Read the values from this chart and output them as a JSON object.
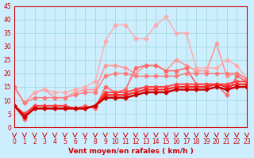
{
  "xlabel": "Vent moyen/en rafales ( km/h )",
  "ylabel": "",
  "xlim": [
    0,
    23
  ],
  "ylim": [
    0,
    45
  ],
  "yticks": [
    0,
    5,
    10,
    15,
    20,
    25,
    30,
    35,
    40,
    45
  ],
  "xticks": [
    0,
    1,
    2,
    3,
    4,
    5,
    6,
    7,
    8,
    9,
    10,
    11,
    12,
    13,
    14,
    15,
    16,
    17,
    18,
    19,
    20,
    21,
    22,
    23
  ],
  "bg_color": "#cceeff",
  "grid_color": "#aadddd",
  "series": [
    {
      "color": "#ff9999",
      "lw": 1.2,
      "marker": "D",
      "ms": 2.5,
      "data": [
        [
          0,
          15
        ],
        [
          1,
          9
        ],
        [
          2,
          13
        ],
        [
          3,
          14
        ],
        [
          4,
          11
        ],
        [
          5,
          11
        ],
        [
          6,
          13
        ],
        [
          7,
          14
        ],
        [
          8,
          14
        ],
        [
          9,
          23
        ],
        [
          10,
          23
        ],
        [
          11,
          22
        ],
        [
          12,
          20
        ],
        [
          13,
          23
        ],
        [
          14,
          23
        ],
        [
          15,
          21
        ],
        [
          16,
          25
        ],
        [
          17,
          23
        ],
        [
          18,
          21
        ],
        [
          19,
          21
        ],
        [
          20,
          31
        ],
        [
          21,
          19
        ],
        [
          22,
          20
        ],
        [
          23,
          18
        ]
      ]
    },
    {
      "color": "#ff6666",
      "lw": 1.2,
      "marker": "D",
      "ms": 2.5,
      "data": [
        [
          0,
          8
        ],
        [
          1,
          3
        ],
        [
          2,
          8
        ],
        [
          3,
          8
        ],
        [
          4,
          8
        ],
        [
          5,
          8
        ],
        [
          6,
          7
        ],
        [
          7,
          8
        ],
        [
          8,
          7
        ],
        [
          9,
          15
        ],
        [
          10,
          13
        ],
        [
          11,
          14
        ],
        [
          12,
          22
        ],
        [
          13,
          23
        ],
        [
          14,
          23
        ],
        [
          15,
          21
        ],
        [
          16,
          21
        ],
        [
          17,
          22
        ],
        [
          18,
          16
        ],
        [
          19,
          16
        ],
        [
          20,
          16
        ],
        [
          21,
          12
        ],
        [
          22,
          19
        ],
        [
          23,
          17
        ]
      ]
    },
    {
      "color": "#ff4444",
      "lw": 1.5,
      "marker": "D",
      "ms": 2.5,
      "data": [
        [
          0,
          8
        ],
        [
          1,
          5
        ],
        [
          2,
          8
        ],
        [
          3,
          8
        ],
        [
          4,
          8
        ],
        [
          5,
          8
        ],
        [
          6,
          7
        ],
        [
          7,
          7
        ],
        [
          8,
          8
        ],
        [
          9,
          13
        ],
        [
          10,
          13
        ],
        [
          11,
          13
        ],
        [
          12,
          14
        ],
        [
          13,
          15
        ],
        [
          14,
          15
        ],
        [
          15,
          15
        ],
        [
          16,
          16
        ],
        [
          17,
          16
        ],
        [
          18,
          16
        ],
        [
          19,
          16
        ],
        [
          20,
          16
        ],
        [
          21,
          16
        ],
        [
          22,
          17
        ],
        [
          23,
          17
        ]
      ]
    },
    {
      "color": "#ff2222",
      "lw": 1.5,
      "marker": "D",
      "ms": 2.5,
      "data": [
        [
          0,
          8
        ],
        [
          1,
          4
        ],
        [
          2,
          7
        ],
        [
          3,
          7
        ],
        [
          4,
          7
        ],
        [
          5,
          7
        ],
        [
          6,
          7
        ],
        [
          7,
          7
        ],
        [
          8,
          8
        ],
        [
          9,
          12
        ],
        [
          10,
          12
        ],
        [
          11,
          12
        ],
        [
          12,
          13
        ],
        [
          13,
          14
        ],
        [
          14,
          14
        ],
        [
          15,
          14
        ],
        [
          16,
          15
        ],
        [
          17,
          15
        ],
        [
          18,
          15
        ],
        [
          19,
          15
        ],
        [
          20,
          16
        ],
        [
          21,
          15
        ],
        [
          22,
          16
        ],
        [
          23,
          16
        ]
      ]
    },
    {
      "color": "#cc0000",
      "lw": 1.8,
      "marker": "D",
      "ms": 2.5,
      "data": [
        [
          0,
          8
        ],
        [
          1,
          4
        ],
        [
          2,
          7
        ],
        [
          3,
          7
        ],
        [
          4,
          7
        ],
        [
          5,
          7
        ],
        [
          6,
          7
        ],
        [
          7,
          7
        ],
        [
          8,
          8
        ],
        [
          9,
          11
        ],
        [
          10,
          11
        ],
        [
          11,
          11
        ],
        [
          12,
          12
        ],
        [
          13,
          13
        ],
        [
          14,
          13
        ],
        [
          15,
          13
        ],
        [
          16,
          14
        ],
        [
          17,
          14
        ],
        [
          18,
          14
        ],
        [
          19,
          14
        ],
        [
          20,
          15
        ],
        [
          21,
          14
        ],
        [
          22,
          15
        ],
        [
          23,
          15
        ]
      ]
    },
    {
      "color": "#ffaaaa",
      "lw": 1.0,
      "marker": "D",
      "ms": 2.5,
      "data": [
        [
          0,
          15
        ],
        [
          1,
          9
        ],
        [
          2,
          13
        ],
        [
          3,
          14
        ],
        [
          4,
          13
        ],
        [
          5,
          13
        ],
        [
          6,
          14
        ],
        [
          7,
          15
        ],
        [
          8,
          17
        ],
        [
          9,
          32
        ],
        [
          10,
          38
        ],
        [
          11,
          38
        ],
        [
          12,
          33
        ],
        [
          13,
          33
        ],
        [
          14,
          38
        ],
        [
          15,
          41
        ],
        [
          16,
          35
        ],
        [
          17,
          35
        ],
        [
          18,
          22
        ],
        [
          19,
          22
        ],
        [
          20,
          22
        ],
        [
          21,
          25
        ],
        [
          22,
          23
        ],
        [
          23,
          18
        ]
      ]
    },
    {
      "color": "#ff7777",
      "lw": 1.0,
      "marker": "D",
      "ms": 2.5,
      "data": [
        [
          0,
          15
        ],
        [
          1,
          9
        ],
        [
          2,
          11
        ],
        [
          3,
          11
        ],
        [
          4,
          11
        ],
        [
          5,
          11
        ],
        [
          6,
          12
        ],
        [
          7,
          13
        ],
        [
          8,
          13
        ],
        [
          9,
          19
        ],
        [
          10,
          20
        ],
        [
          11,
          20
        ],
        [
          12,
          19
        ],
        [
          13,
          19
        ],
        [
          14,
          19
        ],
        [
          15,
          19
        ],
        [
          16,
          19
        ],
        [
          17,
          20
        ],
        [
          18,
          20
        ],
        [
          19,
          20
        ],
        [
          20,
          20
        ],
        [
          21,
          20
        ],
        [
          22,
          20
        ],
        [
          23,
          18
        ]
      ]
    }
  ],
  "wind_arrows": [
    0,
    1,
    2,
    3,
    4,
    5,
    6,
    7,
    8,
    9,
    10,
    11,
    12,
    13,
    14,
    15,
    16,
    17,
    18,
    19,
    20,
    21,
    22,
    23
  ]
}
